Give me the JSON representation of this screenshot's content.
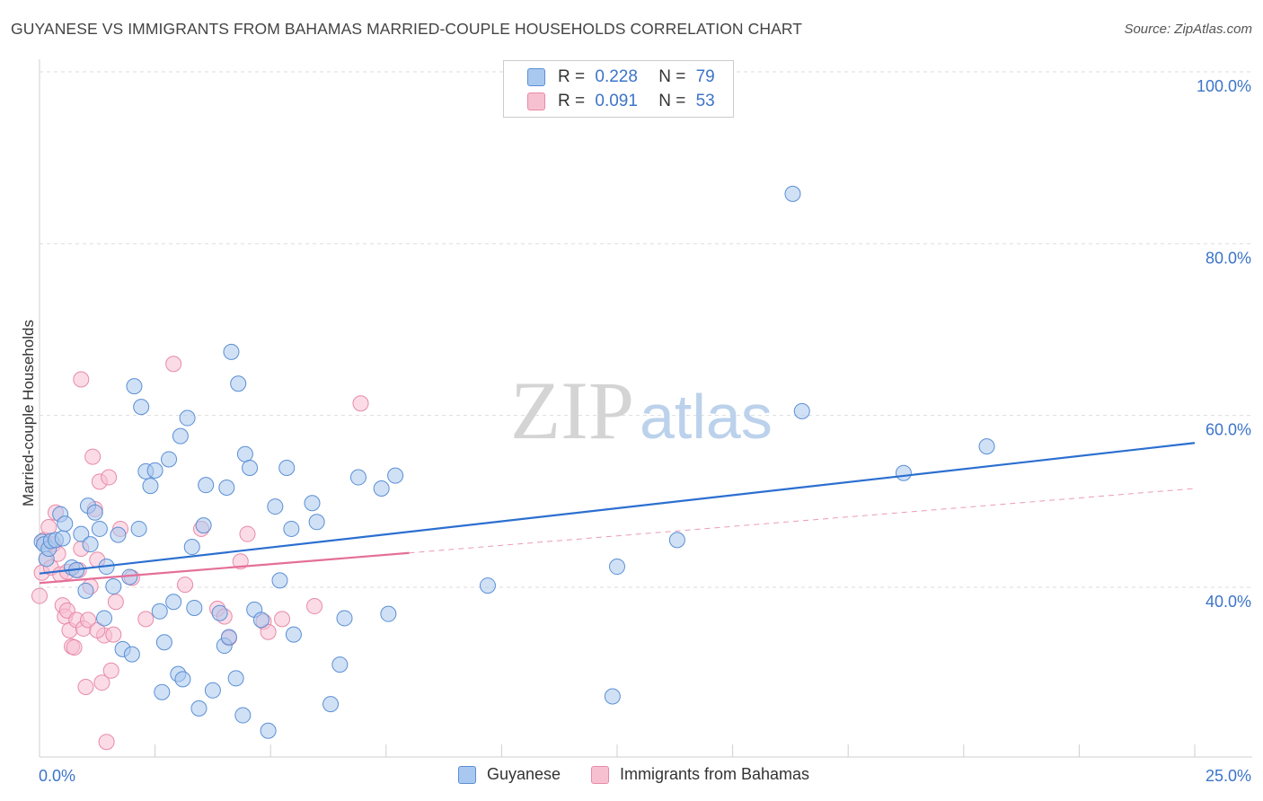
{
  "header": {
    "title": "GUYANESE VS IMMIGRANTS FROM BAHAMAS MARRIED-COUPLE HOUSEHOLDS CORRELATION CHART",
    "source": "Source: ZipAtlas.com"
  },
  "legend_top": {
    "rows": [
      {
        "r_label": "R =",
        "r_value": "0.228",
        "n_label": "N =",
        "n_value": "79"
      },
      {
        "r_label": "R =",
        "r_value": "0.091",
        "n_label": "N =",
        "n_value": "53"
      }
    ]
  },
  "watermark": {
    "part1": "ZIP",
    "part2": "atlas"
  },
  "colors": {
    "blue_fill": "#a9c8ef",
    "blue_stroke": "#5b8fd4",
    "blue_line": "#2b6fd0",
    "pink_fill": "#f7c0d1",
    "pink_stroke": "#e88aa8",
    "pink_line": "#e46f98",
    "axis_text": "#3c74c9",
    "grid": "#dddddd"
  },
  "chart_data": {
    "type": "scatter",
    "title": "GUYANESE VS IMMIGRANTS FROM BAHAMAS MARRIED-COUPLE HOUSEHOLDS CORRELATION CHART",
    "xlabel": "",
    "ylabel": "Married-couple Households",
    "xlim": [
      0,
      25
    ],
    "ylim": [
      20,
      102
    ],
    "x_tick_labels": [
      "0.0%",
      "25.0%"
    ],
    "y_ticks": [
      40,
      60,
      80,
      100
    ],
    "y_tick_labels": [
      "40.0%",
      "60.0%",
      "80.0%",
      "100.0%"
    ],
    "grid": true,
    "legend_position": "bottom-center",
    "series": [
      {
        "name": "Guyanese",
        "r": 0.228,
        "n": 79,
        "trend": {
          "x": [
            0,
            25
          ],
          "y": [
            41.6,
            56.8
          ],
          "style": "solid"
        },
        "points": [
          [
            0.05,
            45.3
          ],
          [
            0.1,
            45.0
          ],
          [
            0.15,
            43.3
          ],
          [
            0.2,
            44.5
          ],
          [
            0.25,
            45.4
          ],
          [
            0.35,
            45.5
          ],
          [
            0.45,
            48.5
          ],
          [
            0.5,
            45.7
          ],
          [
            0.55,
            47.4
          ],
          [
            0.7,
            42.3
          ],
          [
            0.8,
            42.0
          ],
          [
            0.9,
            46.2
          ],
          [
            1.0,
            39.6
          ],
          [
            1.05,
            49.5
          ],
          [
            1.1,
            45.0
          ],
          [
            1.2,
            48.7
          ],
          [
            1.3,
            46.8
          ],
          [
            1.4,
            36.4
          ],
          [
            1.45,
            42.4
          ],
          [
            1.6,
            40.1
          ],
          [
            1.7,
            46.1
          ],
          [
            1.8,
            32.8
          ],
          [
            1.95,
            41.2
          ],
          [
            2.0,
            32.2
          ],
          [
            2.05,
            63.4
          ],
          [
            2.15,
            46.8
          ],
          [
            2.2,
            61.0
          ],
          [
            2.3,
            53.5
          ],
          [
            2.4,
            51.8
          ],
          [
            2.5,
            53.6
          ],
          [
            2.6,
            37.2
          ],
          [
            2.65,
            27.8
          ],
          [
            2.7,
            33.6
          ],
          [
            2.8,
            54.9
          ],
          [
            2.9,
            38.3
          ],
          [
            3.0,
            29.9
          ],
          [
            3.05,
            57.6
          ],
          [
            3.1,
            29.3
          ],
          [
            3.2,
            59.7
          ],
          [
            3.3,
            44.7
          ],
          [
            3.35,
            37.6
          ],
          [
            3.45,
            25.9
          ],
          [
            3.55,
            47.2
          ],
          [
            3.6,
            51.9
          ],
          [
            3.75,
            28.0
          ],
          [
            3.9,
            37.0
          ],
          [
            4.0,
            33.2
          ],
          [
            4.05,
            51.6
          ],
          [
            4.1,
            34.2
          ],
          [
            4.15,
            67.4
          ],
          [
            4.25,
            29.4
          ],
          [
            4.3,
            63.7
          ],
          [
            4.4,
            25.1
          ],
          [
            4.45,
            55.5
          ],
          [
            4.55,
            53.9
          ],
          [
            4.65,
            37.4
          ],
          [
            4.8,
            36.2
          ],
          [
            4.95,
            23.3
          ],
          [
            5.1,
            49.4
          ],
          [
            5.2,
            40.8
          ],
          [
            5.35,
            53.9
          ],
          [
            5.45,
            46.8
          ],
          [
            5.5,
            34.5
          ],
          [
            5.9,
            49.8
          ],
          [
            6.0,
            47.6
          ],
          [
            6.3,
            26.4
          ],
          [
            6.5,
            31.0
          ],
          [
            6.6,
            36.4
          ],
          [
            6.9,
            52.8
          ],
          [
            7.4,
            51.5
          ],
          [
            7.55,
            36.9
          ],
          [
            7.7,
            53.0
          ],
          [
            9.7,
            40.2
          ],
          [
            12.4,
            27.3
          ],
          [
            12.5,
            42.4
          ],
          [
            13.8,
            45.5
          ],
          [
            16.3,
            85.8
          ],
          [
            16.5,
            60.5
          ],
          [
            18.7,
            53.3
          ],
          [
            20.5,
            56.4
          ]
        ]
      },
      {
        "name": "Immigrants from Bahamas",
        "r": 0.091,
        "n": 53,
        "trend": {
          "x": [
            0,
            8.0
          ],
          "y": [
            40.5,
            44.0
          ],
          "style": "solid",
          "dashed_extension": {
            "x": [
              8.0,
              25
            ],
            "y": [
              44.0,
              51.5
            ]
          }
        },
        "points": [
          [
            0.0,
            39.0
          ],
          [
            0.05,
            41.7
          ],
          [
            0.1,
            45.5
          ],
          [
            0.15,
            43.3
          ],
          [
            0.2,
            47.0
          ],
          [
            0.25,
            42.3
          ],
          [
            0.3,
            45.0
          ],
          [
            0.35,
            48.7
          ],
          [
            0.4,
            43.9
          ],
          [
            0.45,
            41.5
          ],
          [
            0.5,
            37.9
          ],
          [
            0.55,
            36.6
          ],
          [
            0.6,
            37.3
          ],
          [
            0.65,
            35.0
          ],
          [
            0.7,
            33.1
          ],
          [
            0.75,
            33.0
          ],
          [
            0.8,
            36.2
          ],
          [
            0.85,
            42.0
          ],
          [
            0.9,
            64.2
          ],
          [
            0.95,
            35.2
          ],
          [
            1.0,
            28.4
          ],
          [
            1.05,
            36.2
          ],
          [
            1.1,
            40.1
          ],
          [
            1.15,
            55.2
          ],
          [
            1.2,
            49.1
          ],
          [
            1.25,
            43.2
          ],
          [
            1.3,
            52.3
          ],
          [
            1.35,
            28.9
          ],
          [
            1.4,
            34.4
          ],
          [
            1.45,
            22.0
          ],
          [
            1.5,
            52.8
          ],
          [
            1.55,
            30.3
          ],
          [
            1.6,
            34.5
          ],
          [
            1.65,
            38.3
          ],
          [
            1.75,
            46.8
          ],
          [
            2.0,
            41.1
          ],
          [
            2.3,
            36.3
          ],
          [
            2.9,
            66.0
          ],
          [
            3.15,
            40.3
          ],
          [
            3.5,
            46.8
          ],
          [
            3.85,
            37.5
          ],
          [
            4.0,
            36.6
          ],
          [
            4.1,
            34.1
          ],
          [
            4.35,
            43.0
          ],
          [
            4.5,
            46.2
          ],
          [
            4.85,
            36.0
          ],
          [
            4.95,
            34.8
          ],
          [
            5.25,
            36.3
          ],
          [
            5.95,
            37.8
          ],
          [
            6.95,
            61.4
          ],
          [
            0.6,
            41.8
          ],
          [
            0.9,
            44.5
          ],
          [
            1.25,
            35.0
          ]
        ]
      }
    ]
  },
  "bottom_legend": {
    "items": [
      {
        "label": "Guyanese"
      },
      {
        "label": "Immigrants from Bahamas"
      }
    ]
  }
}
